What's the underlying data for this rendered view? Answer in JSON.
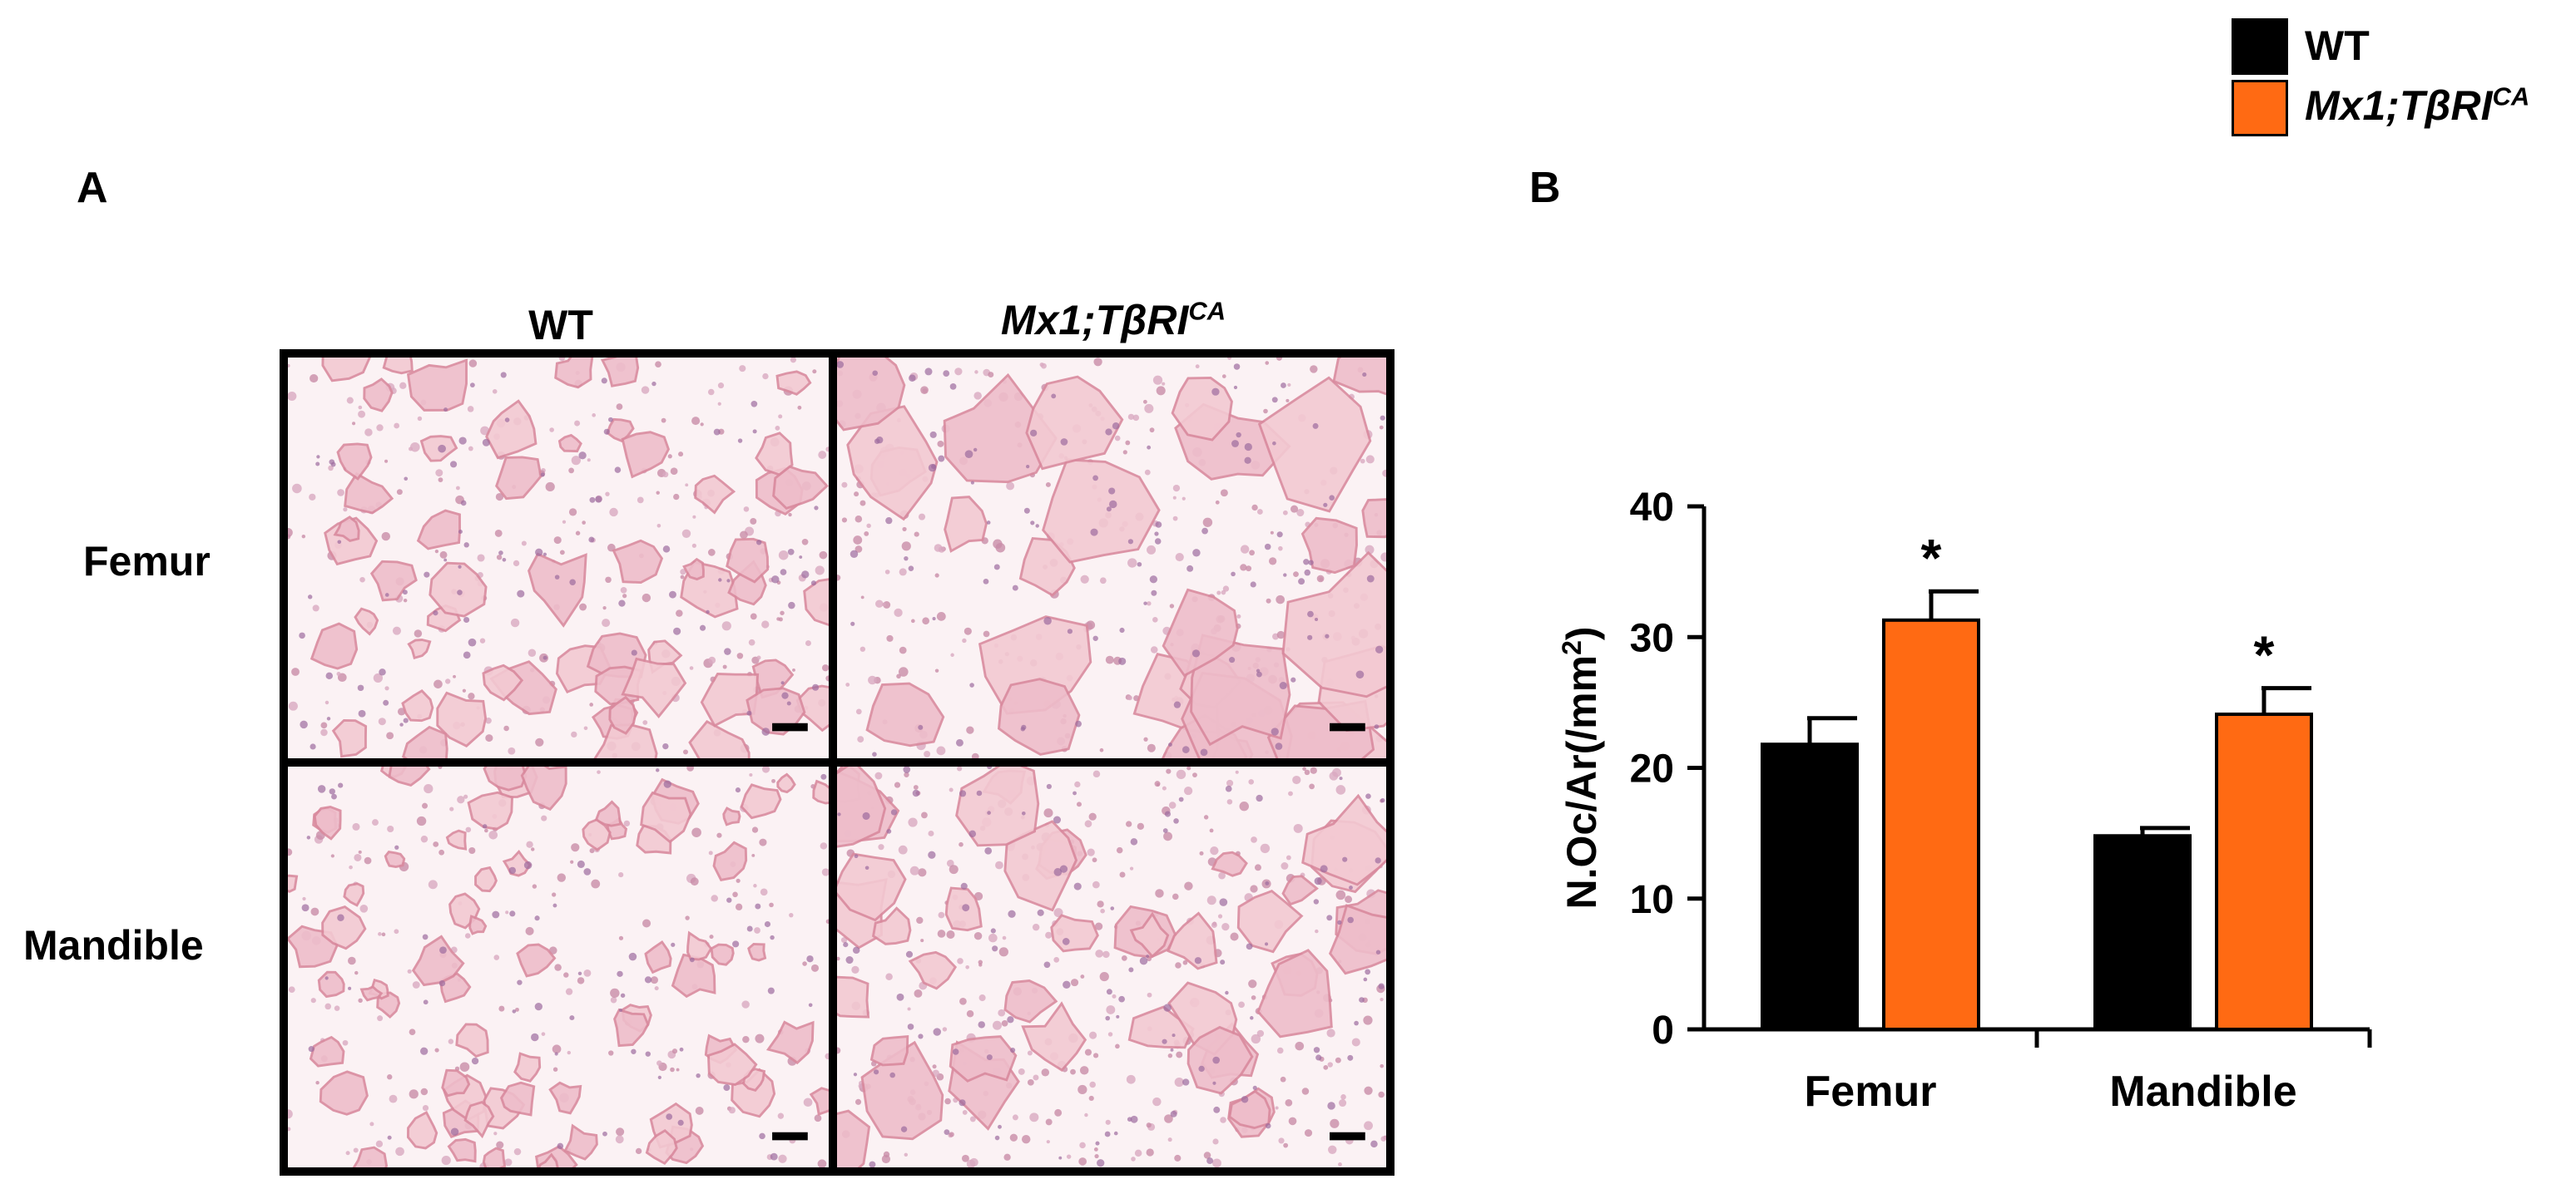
{
  "panel_a": {
    "letter": "A",
    "columns": [
      {
        "text": "WT",
        "italic": false,
        "sup": ""
      },
      {
        "text": "Mx1;TβRI",
        "italic": true,
        "sup": "CA"
      }
    ],
    "rows": [
      "Femur",
      "Mandible"
    ]
  },
  "panel_b": {
    "letter": "B"
  },
  "legend": [
    {
      "text": "WT",
      "sup": "",
      "color": "#000000"
    },
    {
      "text": "Mx1;TβRI",
      "sup": "CA",
      "color": "#ff6a13"
    }
  ],
  "chart_data": {
    "type": "bar",
    "categories": [
      "Femur",
      "Mandible"
    ],
    "series": [
      {
        "name": "WT",
        "values": [
          21.8,
          14.8
        ],
        "errors": [
          2.0,
          0.6
        ],
        "color": "#000000",
        "significance": [
          "",
          ""
        ]
      },
      {
        "name": "Mx1;TβRICA",
        "values": [
          31.3,
          24.1
        ],
        "errors": [
          2.2,
          2.0
        ],
        "color": "#ff6a13",
        "significance": [
          "*",
          "*"
        ]
      }
    ],
    "ylabel": "N.Oc/Ar(/mm",
    "ylabel_sup": "2",
    "ylabel_suffix": ")",
    "ylim": [
      0,
      40
    ],
    "yticks": [
      0,
      10,
      20,
      30,
      40
    ],
    "grid": false,
    "legend_position": "top-right"
  }
}
